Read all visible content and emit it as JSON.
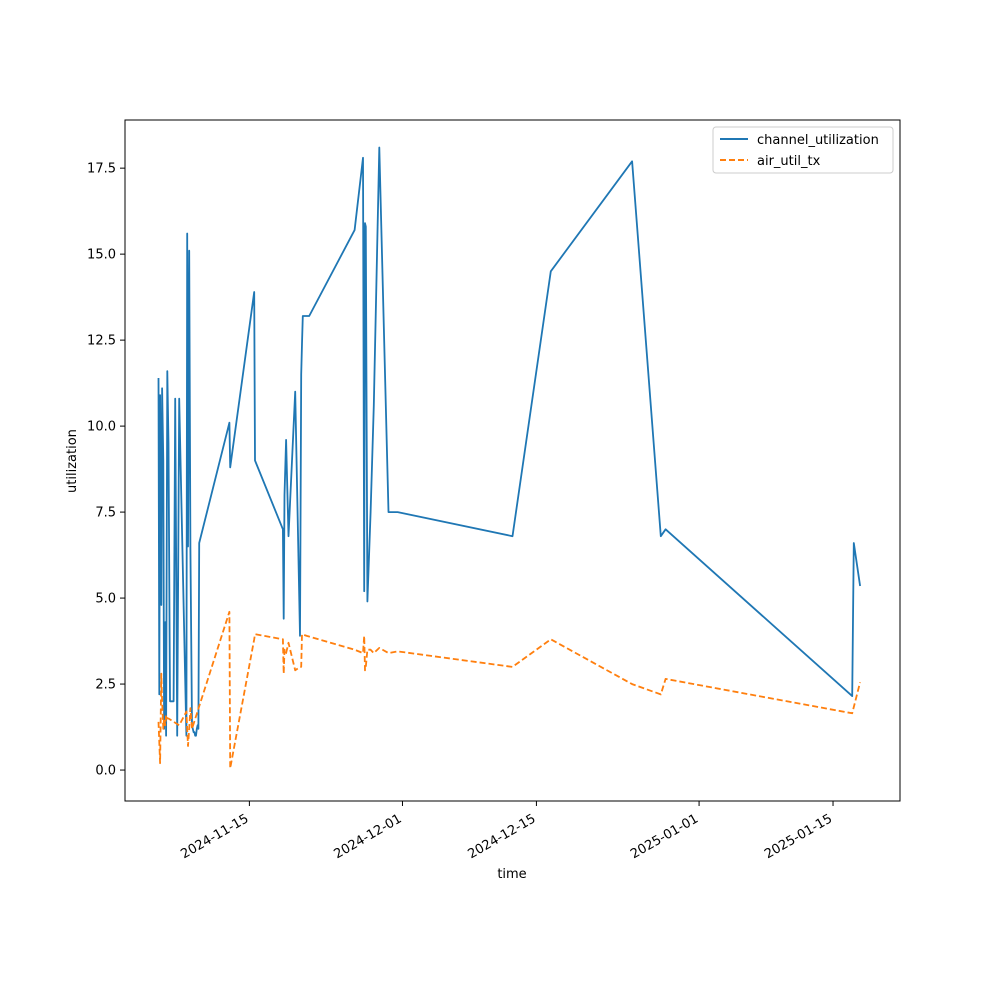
{
  "chart_data": {
    "type": "line",
    "xlabel": "time",
    "ylabel": "utilization",
    "xlim": [
      "2024-11-02",
      "2025-01-22"
    ],
    "ylim": [
      -0.9,
      18.9
    ],
    "x_ticks": [
      "2024-11-15",
      "2024-12-01",
      "2024-12-15",
      "2025-01-01",
      "2025-01-15"
    ],
    "y_ticks": [
      0.0,
      2.5,
      5.0,
      7.5,
      10.0,
      12.5,
      15.0,
      17.5
    ],
    "y_tick_labels": [
      "0.0",
      "2.5",
      "5.0",
      "7.5",
      "10.0",
      "12.5",
      "15.0",
      "17.5"
    ],
    "grid": false,
    "legend_position": "top-right",
    "series": [
      {
        "name": "channel_utilization",
        "color": "#1f77b4",
        "dash": "solid",
        "x": [
          "2024-11-05T12:00",
          "2024-11-05T14:00",
          "2024-11-05T16:00",
          "2024-11-05T19:00",
          "2024-11-05T21:00",
          "2024-11-06T00:00",
          "2024-11-06T02:00",
          "2024-11-06T05:00",
          "2024-11-06T07:00",
          "2024-11-06T10:00",
          "2024-11-06T13:00",
          "2024-11-06T17:00",
          "2024-11-06T21:00",
          "2024-11-07T02:00",
          "2024-11-07T06:00",
          "2024-11-07T11:00",
          "2024-11-07T16:00",
          "2024-11-08T10:00",
          "2024-11-08T12:00",
          "2024-11-08T14:00",
          "2024-11-08T17:00",
          "2024-11-08T20:00",
          "2024-11-09T00:00",
          "2024-11-09T02:00",
          "2024-11-09T04:00",
          "2024-11-09T06:00",
          "2024-11-09T08:00",
          "2024-11-09T10:00",
          "2024-11-09T12:00",
          "2024-11-09T14:00",
          "2024-11-09T16:00",
          "2024-11-09T18:00",
          "2024-11-12T22:00",
          "2024-11-13T00:00",
          "2024-11-15T12:00",
          "2024-11-15T14:00",
          "2024-11-18T12:00",
          "2024-11-18T14:00",
          "2024-11-18T16:00",
          "2024-11-18T20:00",
          "2024-11-19T02:00",
          "2024-11-19T19:00",
          "2024-11-20T07:00",
          "2024-11-20T10:00",
          "2024-11-20T12:00",
          "2024-11-20T14:00",
          "2024-11-21T00:00",
          "2024-11-21T02:00",
          "2024-11-21T06:00",
          "2024-11-26T00:00",
          "2024-11-26T21:00",
          "2024-11-27T00:00",
          "2024-11-27T02:00",
          "2024-11-27T04:00",
          "2024-11-27T08:00",
          "2024-11-27T16:00",
          "2024-11-28T00:00",
          "2024-11-28T14:00",
          "2024-11-29T13:00",
          "2024-11-30T12:00",
          "2024-12-12T12:00",
          "2024-12-16T12:00",
          "2024-12-25T00:00",
          "2024-12-28T00:00",
          "2024-12-28T12:00",
          "2025-01-17T00:00",
          "2025-01-17T04:00",
          "2025-01-17T20:00"
        ],
        "values": [
          11.4,
          2.2,
          10.9,
          4.8,
          11.1,
          9.0,
          1.2,
          4.3,
          1.0,
          11.6,
          9.5,
          2.0,
          2.0,
          2.0,
          10.8,
          1.0,
          10.8,
          1.0,
          15.6,
          6.5,
          15.1,
          6.5,
          1.3,
          1.2,
          1.1,
          1.1,
          1.0,
          1.0,
          1.2,
          1.3,
          1.2,
          6.6,
          10.1,
          8.8,
          13.9,
          9.0,
          7.0,
          4.4,
          8.0,
          9.6,
          6.8,
          11.0,
          3.9,
          11.5,
          12.4,
          13.2,
          13.2,
          13.2,
          13.2,
          15.7,
          17.8,
          5.2,
          15.9,
          15.8,
          4.9,
          7.5,
          10.6,
          18.1,
          7.5,
          7.5,
          6.8,
          14.5,
          17.7,
          6.8,
          7.0,
          2.15,
          6.6,
          5.35
        ]
      },
      {
        "name": "air_util_tx",
        "color": "#ff7f0e",
        "dash": "dashed",
        "x": [
          "2024-11-05T12:00",
          "2024-11-05T14:00",
          "2024-11-05T16:00",
          "2024-11-05T19:00",
          "2024-11-05T21:00",
          "2024-11-06T00:00",
          "2024-11-06T02:00",
          "2024-11-06T05:00",
          "2024-11-06T07:00",
          "2024-11-06T10:00",
          "2024-11-06T13:00",
          "2024-11-07T16:00",
          "2024-11-08T10:00",
          "2024-11-08T14:00",
          "2024-11-08T17:00",
          "2024-11-08T20:00",
          "2024-11-09T00:00",
          "2024-11-12T22:00",
          "2024-11-13T00:00",
          "2024-11-15T12:00",
          "2024-11-15T14:00",
          "2024-11-18T12:00",
          "2024-11-18T14:00",
          "2024-11-18T16:00",
          "2024-11-18T20:00",
          "2024-11-19T02:00",
          "2024-11-19T19:00",
          "2024-11-20T07:00",
          "2024-11-20T10:00",
          "2024-11-20T12:00",
          "2024-11-21T00:00",
          "2024-11-26T00:00",
          "2024-11-26T21:00",
          "2024-11-27T00:00",
          "2024-11-27T02:00",
          "2024-11-27T04:00",
          "2024-11-27T08:00",
          "2024-11-27T16:00",
          "2024-11-28T00:00",
          "2024-11-28T14:00",
          "2024-11-29T13:00",
          "2024-11-30T12:00",
          "2024-12-12T12:00",
          "2024-12-16T12:00",
          "2024-12-25T00:00",
          "2024-12-28T00:00",
          "2024-12-28T12:00",
          "2025-01-17T00:00",
          "2025-01-17T20:00"
        ],
        "values": [
          1.4,
          0.8,
          0.2,
          2.8,
          2.0,
          1.2,
          1.5,
          1.3,
          1.6,
          1.5,
          1.5,
          1.3,
          1.7,
          0.7,
          1.2,
          1.8,
          1.2,
          4.6,
          0.05,
          3.8,
          3.95,
          3.8,
          2.8,
          3.5,
          3.4,
          3.7,
          2.9,
          3.0,
          3.0,
          3.95,
          3.9,
          3.5,
          3.4,
          3.9,
          2.9,
          3.0,
          3.5,
          3.5,
          3.4,
          3.55,
          3.4,
          3.45,
          3.0,
          3.8,
          2.5,
          2.2,
          2.65,
          1.65,
          2.55
        ]
      }
    ]
  }
}
